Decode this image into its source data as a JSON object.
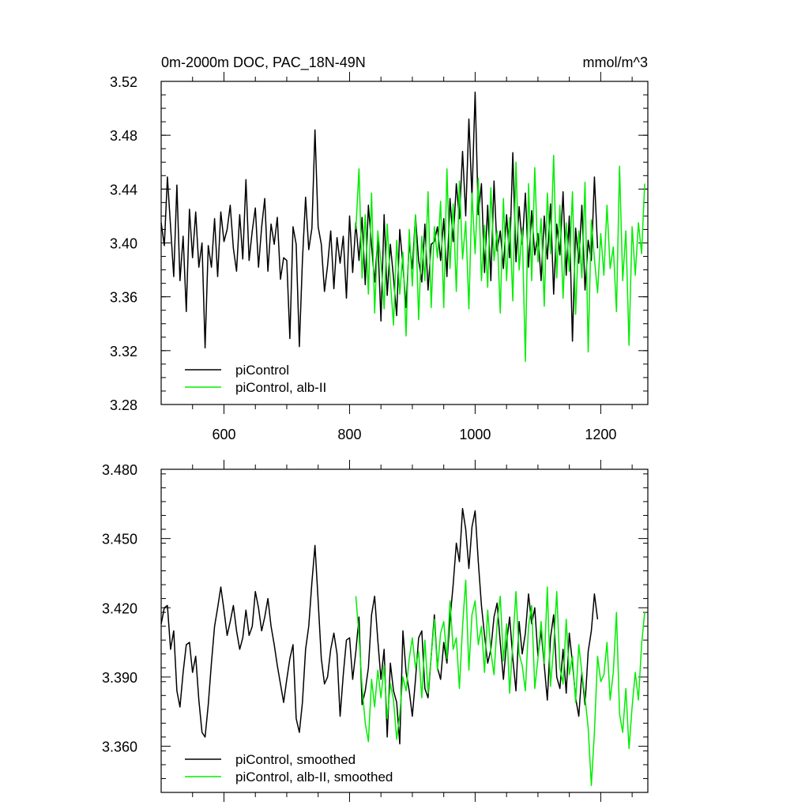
{
  "chart_data": [
    {
      "type": "line",
      "title": "0m-2000m DOC, PAC_18N-49N",
      "units": "mmol/m^3",
      "xlabel": "",
      "ylabel": "",
      "xlim": [
        500,
        1275
      ],
      "ylim": [
        3.28,
        3.52
      ],
      "xticks": [
        600,
        800,
        1000,
        1200
      ],
      "xtick_labels": [
        "600",
        "800",
        "1000",
        "1200"
      ],
      "yticks": [
        3.28,
        3.32,
        3.36,
        3.4,
        3.44,
        3.48,
        3.52
      ],
      "ytick_labels": [
        "3.28",
        "3.32",
        "3.36",
        "3.40",
        "3.44",
        "3.48",
        "3.52"
      ],
      "legend_position": "bottom-left",
      "series": [
        {
          "name": "piControl",
          "color": "#000000",
          "x": [
            500,
            505,
            510,
            515,
            520,
            525,
            530,
            535,
            540,
            545,
            550,
            555,
            560,
            565,
            570,
            575,
            580,
            585,
            590,
            595,
            600,
            605,
            610,
            615,
            620,
            625,
            630,
            635,
            640,
            645,
            650,
            655,
            660,
            665,
            670,
            675,
            680,
            685,
            690,
            695,
            700,
            705,
            710,
            715,
            720,
            725,
            730,
            735,
            740,
            745,
            750,
            755,
            760,
            765,
            770,
            775,
            780,
            785,
            790,
            795,
            800,
            805,
            810,
            815,
            820,
            825,
            830,
            835,
            840,
            845,
            850,
            855,
            860,
            865,
            870,
            875,
            880,
            885,
            890,
            895,
            900,
            905,
            910,
            915,
            920,
            925,
            930,
            935,
            940,
            945,
            950,
            955,
            960,
            965,
            970,
            975,
            980,
            985,
            990,
            995,
            1000,
            1005,
            1010,
            1015,
            1020,
            1025,
            1030,
            1035,
            1040,
            1045,
            1050,
            1055,
            1060,
            1065,
            1070,
            1075,
            1080,
            1085,
            1090,
            1095,
            1100,
            1105,
            1110,
            1115,
            1120,
            1125,
            1130,
            1135,
            1140,
            1145,
            1150,
            1155,
            1160,
            1165,
            1170,
            1175,
            1180,
            1185,
            1190,
            1195
          ],
          "values": [
            3.415,
            3.398,
            3.449,
            3.412,
            3.375,
            3.443,
            3.372,
            3.405,
            3.349,
            3.425,
            3.389,
            3.423,
            3.382,
            3.4,
            3.322,
            3.398,
            3.382,
            3.418,
            3.375,
            3.423,
            3.401,
            3.41,
            3.428,
            3.396,
            3.379,
            3.421,
            3.388,
            3.447,
            3.387,
            3.409,
            3.426,
            3.382,
            3.412,
            3.433,
            3.379,
            3.414,
            3.399,
            3.419,
            3.373,
            3.389,
            3.387,
            3.329,
            3.412,
            3.399,
            3.323,
            3.387,
            3.434,
            3.395,
            3.411,
            3.484,
            3.412,
            3.399,
            3.364,
            3.383,
            3.409,
            3.366,
            3.404,
            3.385,
            3.405,
            3.359,
            3.42,
            3.378,
            3.415,
            3.387,
            3.419,
            3.369,
            3.428,
            3.398,
            3.371,
            3.403,
            3.342,
            3.421,
            3.361,
            3.399,
            3.374,
            3.346,
            3.41,
            3.383,
            3.352,
            3.4,
            3.381,
            3.42,
            3.387,
            3.371,
            3.414,
            3.365,
            3.399,
            3.401,
            3.412,
            3.387,
            3.418,
            3.375,
            3.433,
            3.401,
            3.444,
            3.418,
            3.468,
            3.42,
            3.492,
            3.434,
            3.512,
            3.421,
            3.444,
            3.378,
            3.428,
            3.372,
            3.446,
            3.394,
            3.409,
            3.381,
            3.421,
            3.389,
            3.467,
            3.386,
            3.427,
            3.399,
            3.437,
            3.382,
            3.424,
            3.391,
            3.407,
            3.372,
            3.42,
            3.388,
            3.429,
            3.362,
            3.414,
            3.391,
            3.438,
            3.376,
            3.42,
            3.327,
            3.411,
            3.385,
            3.428,
            3.365,
            3.402,
            3.387,
            3.449,
            3.396
          ]
        },
        {
          "name": "piControl, alb-II",
          "color": "#00ee00",
          "x": [
            810,
            815,
            820,
            825,
            830,
            835,
            840,
            845,
            850,
            855,
            860,
            865,
            870,
            875,
            880,
            885,
            890,
            895,
            900,
            905,
            910,
            915,
            920,
            925,
            930,
            935,
            940,
            945,
            950,
            955,
            960,
            965,
            970,
            975,
            980,
            985,
            990,
            995,
            1000,
            1005,
            1010,
            1015,
            1020,
            1025,
            1030,
            1035,
            1040,
            1045,
            1050,
            1055,
            1060,
            1065,
            1070,
            1075,
            1080,
            1085,
            1090,
            1095,
            1100,
            1105,
            1110,
            1115,
            1120,
            1125,
            1130,
            1135,
            1140,
            1145,
            1150,
            1155,
            1160,
            1165,
            1170,
            1175,
            1180,
            1185,
            1190,
            1195,
            1200,
            1205,
            1210,
            1215,
            1220,
            1225,
            1230,
            1235,
            1240,
            1245,
            1250,
            1255,
            1260,
            1265,
            1270
          ],
          "values": [
            3.41,
            3.455,
            3.374,
            3.421,
            3.362,
            3.437,
            3.348,
            3.409,
            3.386,
            3.351,
            3.414,
            3.372,
            3.339,
            3.402,
            3.362,
            3.393,
            3.331,
            3.41,
            3.368,
            3.421,
            3.343,
            3.405,
            3.372,
            3.438,
            3.352,
            3.412,
            3.389,
            3.431,
            3.352,
            3.455,
            3.381,
            3.429,
            3.364,
            3.446,
            3.388,
            3.416,
            3.351,
            3.437,
            3.392,
            3.448,
            3.372,
            3.413,
            3.367,
            3.441,
            3.387,
            3.409,
            3.348,
            3.433,
            3.372,
            3.419,
            3.357,
            3.46,
            3.38,
            3.411,
            3.312,
            3.444,
            3.372,
            3.456,
            3.386,
            3.418,
            3.353,
            3.437,
            3.392,
            3.465,
            3.374,
            3.428,
            3.359,
            3.415,
            3.379,
            3.438,
            3.347,
            3.409,
            3.374,
            3.445,
            3.319,
            3.417,
            3.388,
            3.363,
            3.407,
            3.376,
            3.428,
            3.381,
            3.397,
            3.349,
            3.457,
            3.372,
            3.409,
            3.324,
            3.412,
            3.376,
            3.415,
            3.392,
            3.444
          ]
        }
      ]
    },
    {
      "type": "line",
      "title": "",
      "xlabel": "",
      "ylabel": "",
      "xlim": [
        500,
        1275
      ],
      "ylim": [
        3.34,
        3.48
      ],
      "xticks": [
        600,
        800,
        1000,
        1200
      ],
      "yticks": [
        3.36,
        3.39,
        3.42,
        3.45,
        3.48
      ],
      "ytick_labels": [
        "3.360",
        "3.390",
        "3.420",
        "3.450",
        "3.480"
      ],
      "legend_position": "bottom-left",
      "series": [
        {
          "name": "piControl, smoothed",
          "color": "#000000",
          "x": [
            500,
            505,
            510,
            515,
            520,
            525,
            530,
            535,
            540,
            545,
            550,
            555,
            560,
            565,
            570,
            575,
            580,
            585,
            590,
            595,
            600,
            605,
            610,
            615,
            620,
            625,
            630,
            635,
            640,
            645,
            650,
            655,
            660,
            665,
            670,
            675,
            680,
            685,
            690,
            695,
            700,
            705,
            710,
            715,
            720,
            725,
            730,
            735,
            740,
            745,
            750,
            755,
            760,
            765,
            770,
            775,
            780,
            785,
            790,
            795,
            800,
            805,
            810,
            815,
            820,
            825,
            830,
            835,
            840,
            845,
            850,
            855,
            860,
            865,
            870,
            875,
            880,
            885,
            890,
            895,
            900,
            905,
            910,
            915,
            920,
            925,
            930,
            935,
            940,
            945,
            950,
            955,
            960,
            965,
            970,
            975,
            980,
            985,
            990,
            995,
            1000,
            1005,
            1010,
            1015,
            1020,
            1025,
            1030,
            1035,
            1040,
            1045,
            1050,
            1055,
            1060,
            1065,
            1070,
            1075,
            1080,
            1085,
            1090,
            1095,
            1100,
            1105,
            1110,
            1115,
            1120,
            1125,
            1130,
            1135,
            1140,
            1145,
            1150,
            1155,
            1160,
            1165,
            1170,
            1175,
            1180,
            1185,
            1190,
            1195
          ],
          "values": [
            3.413,
            3.42,
            3.421,
            3.402,
            3.41,
            3.384,
            3.377,
            3.392,
            3.404,
            3.405,
            3.392,
            3.399,
            3.38,
            3.366,
            3.364,
            3.378,
            3.396,
            3.412,
            3.42,
            3.429,
            3.419,
            3.408,
            3.414,
            3.421,
            3.41,
            3.402,
            3.407,
            3.419,
            3.408,
            3.412,
            3.427,
            3.42,
            3.41,
            3.416,
            3.424,
            3.412,
            3.404,
            3.395,
            3.387,
            3.379,
            3.389,
            3.398,
            3.404,
            3.372,
            3.366,
            3.379,
            3.402,
            3.412,
            3.431,
            3.447,
            3.423,
            3.398,
            3.387,
            3.39,
            3.402,
            3.409,
            3.4,
            3.373,
            3.391,
            3.406,
            3.407,
            3.389,
            3.401,
            3.416,
            3.378,
            3.384,
            3.394,
            3.417,
            3.425,
            3.406,
            3.389,
            3.402,
            3.364,
            3.396,
            3.384,
            3.379,
            3.361,
            3.41,
            3.392,
            3.384,
            3.373,
            3.389,
            3.407,
            3.41,
            3.385,
            3.381,
            3.399,
            3.417,
            3.394,
            3.389,
            3.405,
            3.396,
            3.415,
            3.43,
            3.448,
            3.44,
            3.463,
            3.454,
            3.437,
            3.455,
            3.462,
            3.44,
            3.421,
            3.408,
            3.396,
            3.402,
            3.416,
            3.422,
            3.405,
            3.389,
            3.405,
            3.416,
            3.398,
            3.384,
            3.414,
            3.4,
            3.409,
            3.426,
            3.413,
            3.42,
            3.399,
            3.41,
            3.395,
            3.38,
            3.407,
            3.417,
            3.39,
            3.385,
            3.402,
            3.383,
            3.409,
            3.396,
            3.381,
            3.373,
            3.392,
            3.378,
            3.401,
            3.41,
            3.426,
            3.415
          ]
        },
        {
          "name": "piControl, alb-II, smoothed",
          "color": "#00ee00",
          "x": [
            810,
            815,
            820,
            825,
            830,
            835,
            840,
            845,
            850,
            855,
            860,
            865,
            870,
            875,
            880,
            885,
            890,
            895,
            900,
            905,
            910,
            915,
            920,
            925,
            930,
            935,
            940,
            945,
            950,
            955,
            960,
            965,
            970,
            975,
            980,
            985,
            990,
            995,
            1000,
            1005,
            1010,
            1015,
            1020,
            1025,
            1030,
            1035,
            1040,
            1045,
            1050,
            1055,
            1060,
            1065,
            1070,
            1075,
            1080,
            1085,
            1090,
            1095,
            1100,
            1105,
            1110,
            1115,
            1120,
            1125,
            1130,
            1135,
            1140,
            1145,
            1150,
            1155,
            1160,
            1165,
            1170,
            1175,
            1180,
            1185,
            1190,
            1195,
            1200,
            1205,
            1210,
            1215,
            1220,
            1225,
            1230,
            1235,
            1240,
            1245,
            1250,
            1255,
            1260,
            1265,
            1270
          ],
          "values": [
            3.425,
            3.408,
            3.386,
            3.37,
            3.362,
            3.389,
            3.377,
            3.393,
            3.381,
            3.395,
            3.372,
            3.387,
            3.38,
            3.363,
            3.374,
            3.39,
            3.384,
            3.398,
            3.407,
            3.394,
            3.401,
            3.381,
            3.406,
            3.383,
            3.399,
            3.415,
            3.393,
            3.409,
            3.414,
            3.398,
            3.423,
            3.402,
            3.407,
            3.385,
            3.412,
            3.432,
            3.393,
            3.417,
            3.423,
            3.404,
            3.412,
            3.392,
            3.419,
            3.401,
            3.391,
            3.413,
            3.425,
            3.397,
            3.413,
            3.383,
            3.405,
            3.427,
            3.4,
            3.395,
            3.384,
            3.412,
            3.421,
            3.385,
            3.398,
            3.414,
            3.396,
            3.429,
            3.386,
            3.403,
            3.427,
            3.394,
            3.387,
            3.415,
            3.391,
            3.399,
            3.379,
            3.404,
            3.392,
            3.381,
            3.368,
            3.343,
            3.366,
            3.399,
            3.388,
            3.391,
            3.405,
            3.38,
            3.392,
            3.418,
            3.374,
            3.366,
            3.385,
            3.359,
            3.377,
            3.392,
            3.38,
            3.404,
            3.418
          ]
        }
      ]
    }
  ]
}
